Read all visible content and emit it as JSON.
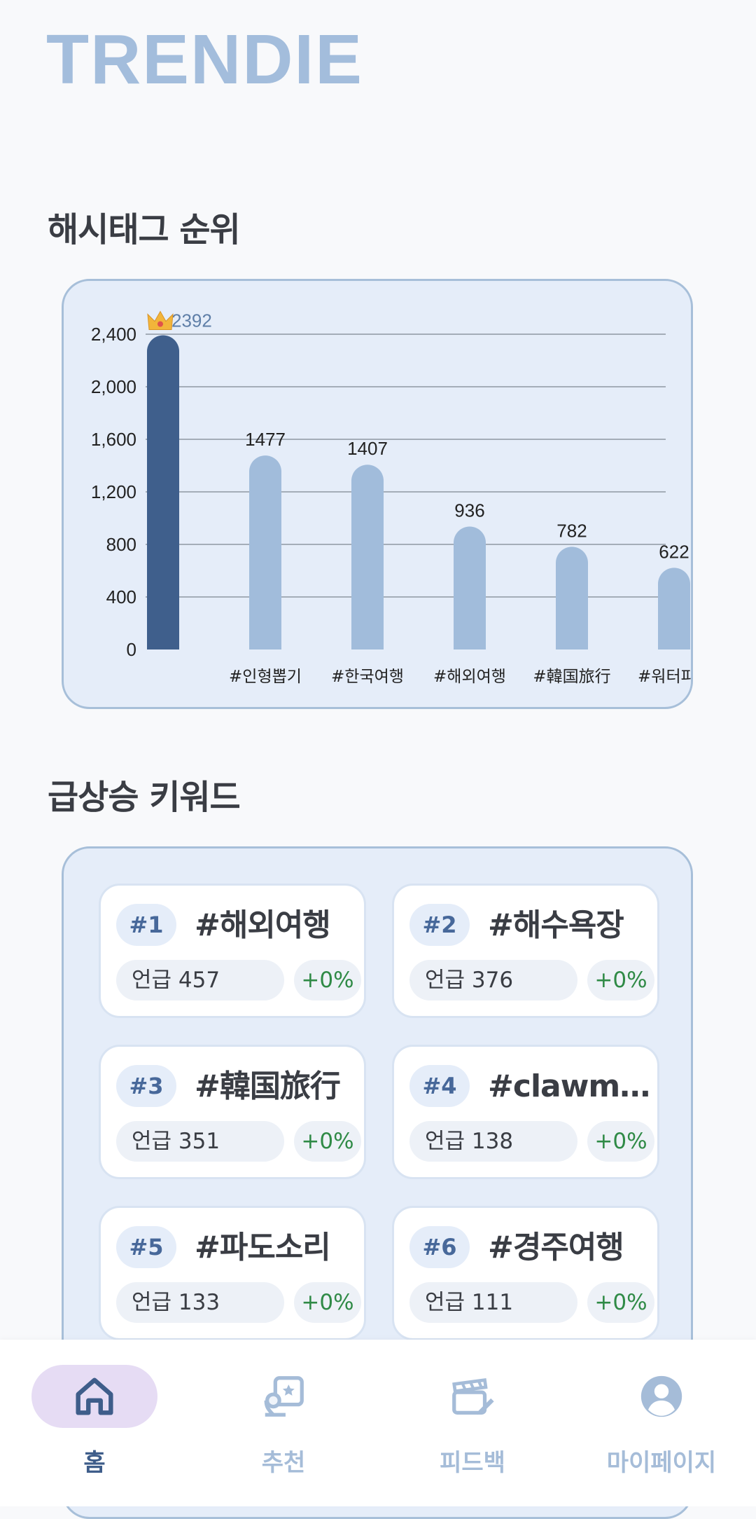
{
  "app": {
    "title": "TRENDIE"
  },
  "sections": {
    "hashtag_ranking_title": "해시태그 순위",
    "surging_keywords_title": "급상승 키워드"
  },
  "chart_data": {
    "type": "bar",
    "categories": [
      "",
      "#인형뽑기",
      "#한국여행",
      "#해외여행",
      "#韓国旅行",
      "#워터파크"
    ],
    "values": [
      2392,
      1477,
      1407,
      936,
      782,
      622
    ],
    "data_labels": [
      "2392",
      "1477",
      "1407",
      "936",
      "782",
      "622"
    ],
    "yticks": [
      "0",
      "400",
      "800",
      "1,200",
      "1,600",
      "2,000",
      "2,400"
    ],
    "ytick_values": [
      0,
      400,
      800,
      1200,
      1600,
      2000,
      2400
    ],
    "ylim": [
      0,
      2400
    ],
    "grid": true,
    "top_marker": "crown",
    "colors": {
      "top_bar": "#3f5f8c",
      "bar": "#a1bcdb",
      "grid": "#8f98a3",
      "top_label": "#5f7fa8"
    }
  },
  "keywords": [
    {
      "rank": "#1",
      "tag": "#해외여행",
      "mention": "언급 457",
      "change": "+0%"
    },
    {
      "rank": "#2",
      "tag": "#해수욕장",
      "mention": "언급 376",
      "change": "+0%"
    },
    {
      "rank": "#3",
      "tag": "#韓国旅行",
      "mention": "언급 351",
      "change": "+0%"
    },
    {
      "rank": "#4",
      "tag": "#clawmachine",
      "mention": "언급 138",
      "change": "+0%"
    },
    {
      "rank": "#5",
      "tag": "#파도소리",
      "mention": "언급 133",
      "change": "+0%"
    },
    {
      "rank": "#6",
      "tag": "#경주여행",
      "mention": "언급 111",
      "change": "+0%"
    }
  ],
  "nav": {
    "items": [
      {
        "label": "홈",
        "icon": "home-icon",
        "active": true
      },
      {
        "label": "추천",
        "icon": "recommend-icon",
        "active": false
      },
      {
        "label": "피드백",
        "icon": "clapperboard-icon",
        "active": false
      },
      {
        "label": "마이페이지",
        "icon": "profile-icon",
        "active": false
      }
    ]
  },
  "colors": {
    "brand": "#a3bddc",
    "active_nav_text": "#3e5d8a",
    "inactive_nav": "#a5bcd8",
    "positive_change": "#2f8a46"
  }
}
